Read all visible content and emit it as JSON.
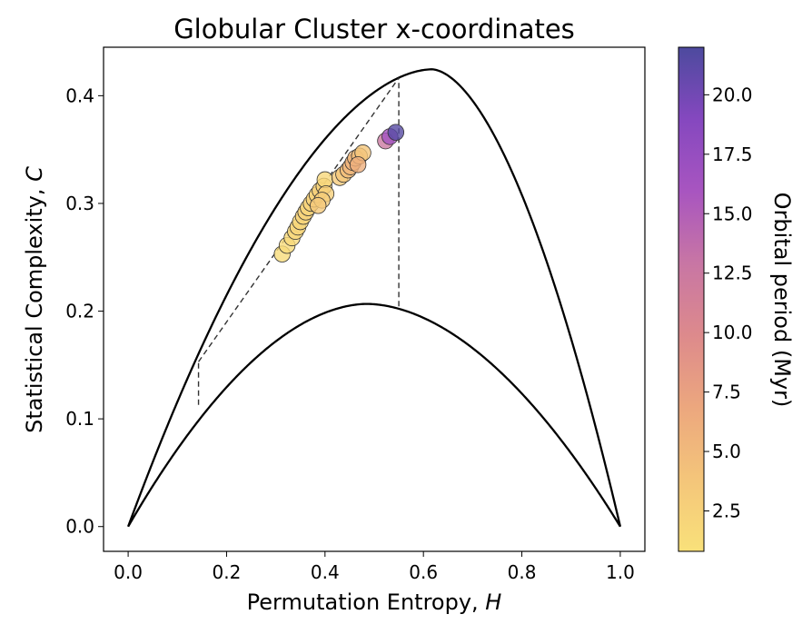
{
  "chart_data": {
    "type": "scatter",
    "title": "Globular Cluster x-coordinates",
    "xlabel_main": "Permutation Entropy, ",
    "xlabel_var": "H",
    "ylabel_main": "Statistical Complexity, ",
    "ylabel_var": "C",
    "colorbar_label": "Orbital period (Myr)",
    "xlim": [
      -0.05,
      1.05
    ],
    "ylim": [
      -0.023,
      0.445
    ],
    "x_ticks": [
      0.0,
      0.2,
      0.4,
      0.6,
      0.8,
      1.0
    ],
    "x_tick_labels": [
      "0.0",
      "0.2",
      "0.4",
      "0.6",
      "0.8",
      "1.0"
    ],
    "y_ticks": [
      0.0,
      0.1,
      0.2,
      0.3,
      0.4
    ],
    "y_tick_labels": [
      "0.0",
      "0.1",
      "0.2",
      "0.3",
      "0.4"
    ],
    "colorbar_range": [
      0.8,
      22.0
    ],
    "colorbar_ticks": [
      2.5,
      5.0,
      7.5,
      10.0,
      12.5,
      15.0,
      17.5,
      20.0
    ],
    "colorbar_tick_labels": [
      "2.5",
      "5.0",
      "7.5",
      "10.0",
      "12.5",
      "15.0",
      "17.5",
      "20.0"
    ],
    "colormap": [
      "#f9e17a",
      "#f4c57a",
      "#eca77e",
      "#dd8a8c",
      "#c876a4",
      "#a855c0",
      "#8548bf",
      "#4d4a9e"
    ],
    "grid": false,
    "max_boundary_peak": [
      0.617,
      0.4245
    ],
    "min_boundary_peak": [
      0.485,
      0.2067
    ],
    "dashed_lines": [
      {
        "x": [
          0.143,
          0.55
        ],
        "y": [
          0.153,
          0.4165
        ]
      },
      {
        "x": [
          0.143,
          0.143
        ],
        "y": [
          0.113,
          0.153
        ]
      },
      {
        "x": [
          0.55,
          0.55
        ],
        "y": [
          0.2045,
          0.4165
        ]
      }
    ],
    "points": [
      {
        "x": 0.313,
        "y": 0.253,
        "period": 1.3
      },
      {
        "x": 0.323,
        "y": 0.261,
        "period": 1.4
      },
      {
        "x": 0.333,
        "y": 0.268,
        "period": 1.6
      },
      {
        "x": 0.34,
        "y": 0.274,
        "period": 1.8
      },
      {
        "x": 0.345,
        "y": 0.278,
        "period": 2.0
      },
      {
        "x": 0.35,
        "y": 0.283,
        "period": 1.9
      },
      {
        "x": 0.356,
        "y": 0.288,
        "period": 2.1
      },
      {
        "x": 0.361,
        "y": 0.292,
        "period": 2.2
      },
      {
        "x": 0.366,
        "y": 0.296,
        "period": 2.0
      },
      {
        "x": 0.372,
        "y": 0.3,
        "period": 2.3
      },
      {
        "x": 0.378,
        "y": 0.304,
        "period": 2.4
      },
      {
        "x": 0.384,
        "y": 0.308,
        "period": 2.2
      },
      {
        "x": 0.39,
        "y": 0.312,
        "period": 2.5
      },
      {
        "x": 0.398,
        "y": 0.316,
        "period": 2.1
      },
      {
        "x": 0.4,
        "y": 0.322,
        "period": 1.9
      },
      {
        "x": 0.402,
        "y": 0.309,
        "period": 2.6
      },
      {
        "x": 0.394,
        "y": 0.303,
        "period": 3.0
      },
      {
        "x": 0.386,
        "y": 0.298,
        "period": 3.4
      },
      {
        "x": 0.43,
        "y": 0.324,
        "period": 3.2
      },
      {
        "x": 0.438,
        "y": 0.327,
        "period": 3.6
      },
      {
        "x": 0.447,
        "y": 0.331,
        "period": 4.6
      },
      {
        "x": 0.452,
        "y": 0.334,
        "period": 5.2
      },
      {
        "x": 0.457,
        "y": 0.338,
        "period": 5.5
      },
      {
        "x": 0.462,
        "y": 0.342,
        "period": 5.0
      },
      {
        "x": 0.47,
        "y": 0.344,
        "period": 4.2
      },
      {
        "x": 0.477,
        "y": 0.347,
        "period": 3.8
      },
      {
        "x": 0.467,
        "y": 0.336,
        "period": 6.0
      },
      {
        "x": 0.523,
        "y": 0.358,
        "period": 12.5
      },
      {
        "x": 0.532,
        "y": 0.362,
        "period": 16.5
      },
      {
        "x": 0.544,
        "y": 0.366,
        "period": 21.5
      }
    ]
  }
}
